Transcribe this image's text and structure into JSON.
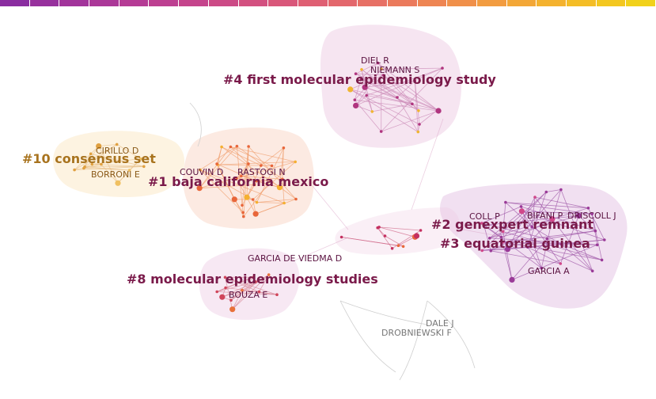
{
  "timeline": {
    "colors": [
      "#8a2da0",
      "#97319d",
      "#a2349b",
      "#ab3898",
      "#b53b95",
      "#bd3f91",
      "#c5448c",
      "#cc4a86",
      "#d35080",
      "#d9577a",
      "#df5f73",
      "#e3676c",
      "#e77065",
      "#eb7a5c",
      "#ee8553",
      "#f0904a",
      "#f29c40",
      "#f3a737",
      "#f4b22e",
      "#f4bd26",
      "#f3c71f",
      "#f1d11a"
    ]
  },
  "colors": {
    "cluster_label": "#7a1a4a",
    "author_label": "#5a1240",
    "gold_label": "#a8731e",
    "grey_label": "#777777",
    "pink_hull": "#e9b8d8",
    "purple_hull": "#d6a6d8",
    "yellow_hull": "#f8dca8"
  },
  "clusters": [
    {
      "key": "c4",
      "label": "#4 first molecular epidemiology study"
    },
    {
      "key": "c10",
      "label": "#10 consensus set"
    },
    {
      "key": "c1",
      "label": "#1 baja california mexico"
    },
    {
      "key": "c2",
      "label": "#2 genexpert remnant"
    },
    {
      "key": "c3",
      "label": "#3 equatorial guinea"
    },
    {
      "key": "c8",
      "label": "#8 molecular epidemiology studies"
    }
  ],
  "authors": [
    {
      "key": "a_diel",
      "name": "DIEL R"
    },
    {
      "key": "a_niemann",
      "name": "NIEMANN S"
    },
    {
      "key": "a_cirillo",
      "name": "CIRILLO D"
    },
    {
      "key": "a_borroni",
      "name": "BORRONI E"
    },
    {
      "key": "a_couvin",
      "name": "COUVIN D"
    },
    {
      "key": "a_rastogi",
      "name": "RASTOGI N"
    },
    {
      "key": "a_coll",
      "name": "COLL P"
    },
    {
      "key": "a_bifani",
      "name": "BIFANI P"
    },
    {
      "key": "a_driscoll",
      "name": "DRISCOLL J"
    },
    {
      "key": "a_garcia_a",
      "name": "GARCIA A"
    },
    {
      "key": "a_garcia_viedma",
      "name": "GARCIA DE VIEDMA D"
    },
    {
      "key": "a_bouza",
      "name": "BOUZA E"
    },
    {
      "key": "a_dale",
      "name": "DALE J"
    },
    {
      "key": "a_drobniewski",
      "name": "DROBNIEWSKI F"
    }
  ]
}
